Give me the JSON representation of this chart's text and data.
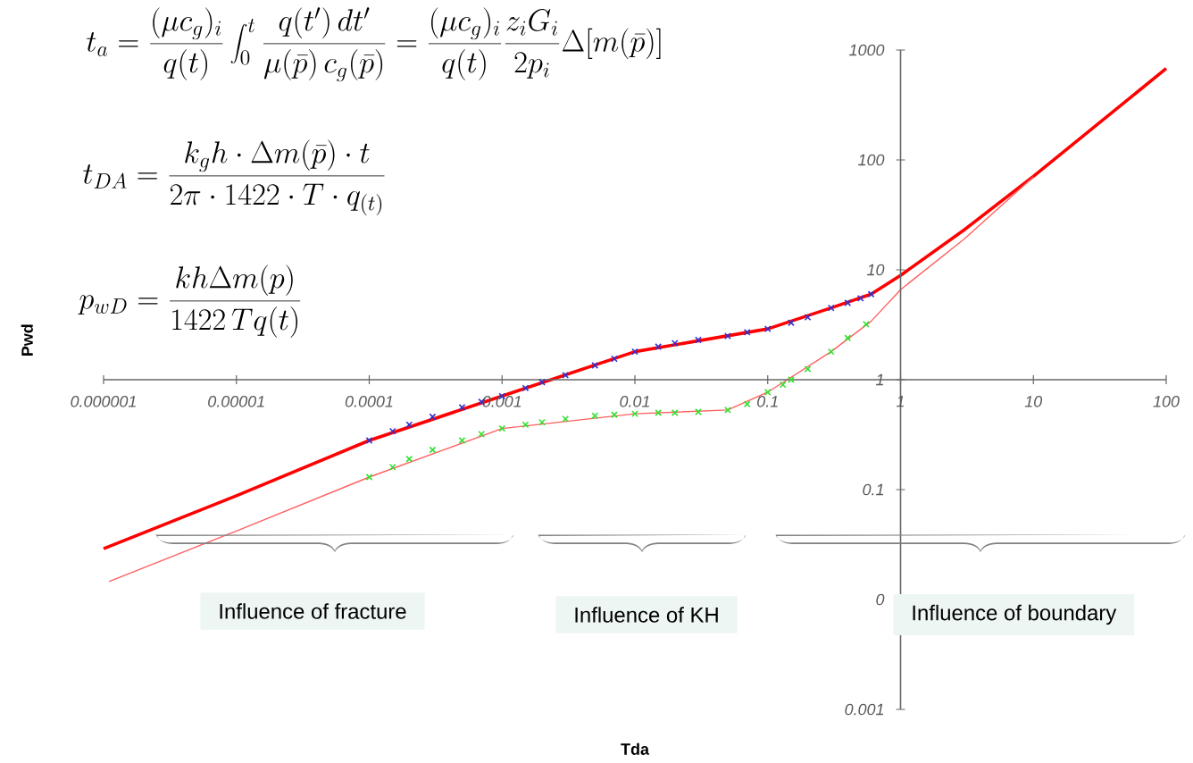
{
  "chart_data": {
    "type": "line",
    "xlabel": "Tda",
    "ylabel": "Pwd",
    "log": "xy",
    "grid": false,
    "xlim": [
      1e-06,
      100
    ],
    "ylim": [
      0.001,
      1000
    ],
    "xticks": [
      {
        "value": 1e-06,
        "label": "0.000001"
      },
      {
        "value": 1e-05,
        "label": "0.00001"
      },
      {
        "value": 0.0001,
        "label": "0.0001"
      },
      {
        "value": 0.001,
        "label": "0.001"
      },
      {
        "value": 0.01,
        "label": "0.01"
      },
      {
        "value": 0.1,
        "label": "0.1"
      },
      1,
      10,
      100
    ],
    "yticks": [
      0.001,
      {
        "value": 0.01,
        "label": "0"
      },
      0.1,
      1,
      10,
      100,
      1000
    ],
    "series": [
      {
        "marker": "none",
        "color": "#ff0000",
        "x": [
          1e-06,
          1e-05,
          0.0001,
          0.001,
          0.01,
          0.1,
          0.3,
          0.6,
          1,
          3,
          10,
          100
        ],
        "values": [
          0.029,
          0.088,
          0.28,
          0.71,
          1.8,
          2.9,
          4.5,
          6.0,
          8.9,
          23,
          71,
          680
        ]
      },
      {
        "type": "scatter",
        "marker": "cross",
        "color": "#3030d0",
        "x": [
          0.0001,
          0.00015,
          0.0002,
          0.0003,
          0.0005,
          0.0007,
          0.001,
          0.0015,
          0.002,
          0.003,
          0.005,
          0.007,
          0.01,
          0.015,
          0.02,
          0.03,
          0.05,
          0.07,
          0.1,
          0.15,
          0.2,
          0.3,
          0.4,
          0.5,
          0.6
        ],
        "values": [
          0.28,
          0.34,
          0.39,
          0.46,
          0.56,
          0.63,
          0.71,
          0.84,
          0.95,
          1.1,
          1.35,
          1.55,
          1.8,
          2.0,
          2.15,
          2.3,
          2.5,
          2.7,
          2.9,
          3.3,
          3.7,
          4.5,
          5.0,
          5.5,
          6.0
        ]
      },
      {
        "marker": "none",
        "color": "#ff6060",
        "x": [
          1.1e-06,
          1e-05,
          0.0001,
          0.001,
          0.01,
          0.05,
          0.1,
          0.3,
          0.6,
          1,
          3,
          10
        ],
        "values": [
          0.0146,
          0.042,
          0.13,
          0.36,
          0.49,
          0.53,
          0.77,
          1.8,
          3.4,
          6.6,
          19,
          70
        ]
      },
      {
        "type": "scatter",
        "marker": "cross",
        "color": "#30e030",
        "x": [
          0.0001,
          0.00015,
          0.0002,
          0.0003,
          0.0005,
          0.0007,
          0.001,
          0.0015,
          0.002,
          0.003,
          0.005,
          0.007,
          0.01,
          0.015,
          0.02,
          0.03,
          0.05,
          0.07,
          0.1,
          0.13,
          0.15,
          0.2,
          0.3,
          0.4,
          0.55
        ],
        "values": [
          0.13,
          0.16,
          0.19,
          0.23,
          0.28,
          0.32,
          0.36,
          0.39,
          0.41,
          0.44,
          0.47,
          0.48,
          0.49,
          0.5,
          0.5,
          0.51,
          0.53,
          0.6,
          0.77,
          0.9,
          1.0,
          1.25,
          1.8,
          2.4,
          3.2
        ]
      }
    ],
    "annotations": [
      "t_a = \\frac{(\\mu c_g)_i}{q(t)} \\int_0^t \\frac{q(t')\\,dt'}{\\mu(\\bar p)\\, c_g(\\bar p)} = \\frac{(\\mu c_g)_i}{q(t)} \\frac{z_i G_i}{2 p_i} \\Delta[m(\\bar p)]",
      "t_{DA} = \\frac{k_g h \\cdot \\Delta m(\\bar p) \\cdot t}{2\\pi \\cdot 1422 \\cdot T \\cdot q_{(t)}}",
      "p_{wD} = \\frac{k h \\Delta m(p)}{1422\\, T q(t)}",
      "Influence of fracture",
      "Influence of KH",
      "Influence of boundary"
    ]
  }
}
